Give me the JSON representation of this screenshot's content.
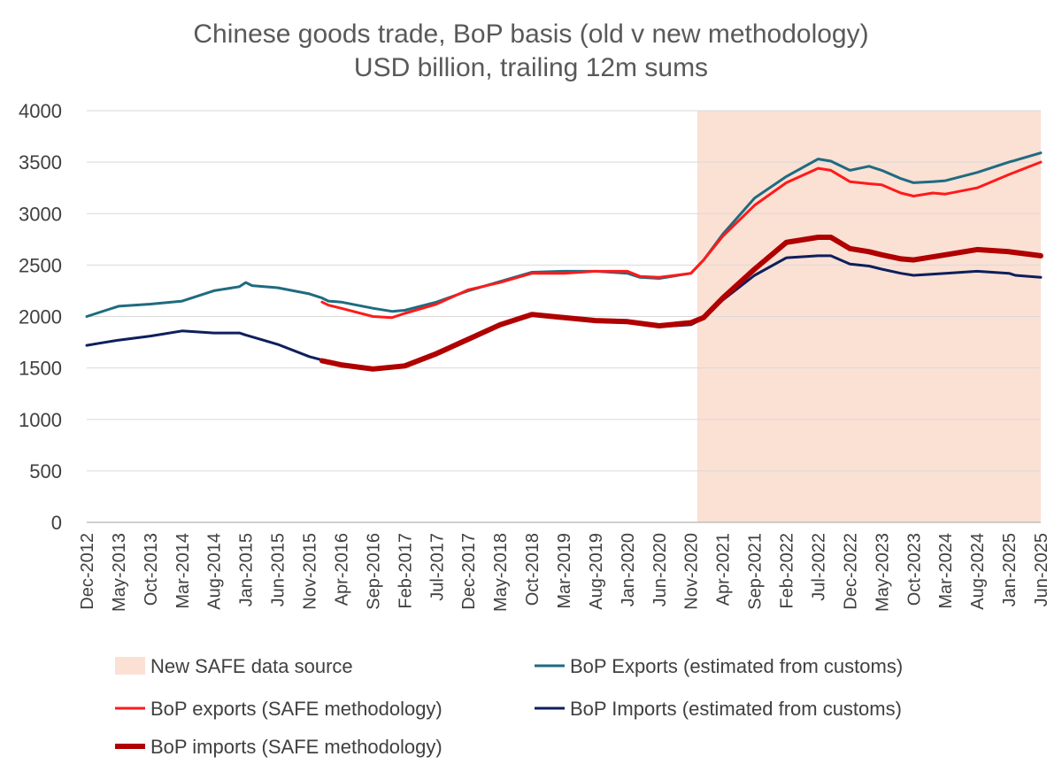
{
  "chart_data": {
    "type": "line",
    "title": "Chinese goods trade, BoP basis (old v new methodology)",
    "subtitle": "USD billion, trailing 12m sums",
    "ylim": [
      0,
      4000
    ],
    "y_ticks": [
      "0",
      "500",
      "1000",
      "1500",
      "2000",
      "2500",
      "3000",
      "3500",
      "4000"
    ],
    "x_ticks": [
      "Dec-2012",
      "May-2013",
      "Oct-2013",
      "Mar-2014",
      "Aug-2014",
      "Jan-2015",
      "Jun-2015",
      "Nov-2015",
      "Apr-2016",
      "Sep-2016",
      "Feb-2017",
      "Jul-2017",
      "Dec-2017",
      "May-2018",
      "Oct-2018",
      "Mar-2019",
      "Aug-2019",
      "Jan-2020",
      "Jun-2020",
      "Nov-2020",
      "Apr-2021",
      "Sep-2021",
      "Feb-2022",
      "Jul-2022",
      "Dec-2022",
      "May-2023",
      "Oct-2023",
      "Mar-2024",
      "Aug-2024",
      "Jan-2025",
      "Jun-2025"
    ],
    "shaded_region": {
      "label": "New SAFE data source",
      "start": "Dec-2020",
      "end": "Jun-2025",
      "color": "#fbe0d4"
    },
    "grid": true,
    "series": [
      {
        "name": "BoP Exports (estimated from customs)",
        "color": "#1f6b80",
        "width": 3,
        "points": [
          [
            "Dec-2012",
            2000
          ],
          [
            "Mar-2013",
            2060
          ],
          [
            "May-2013",
            2100
          ],
          [
            "Oct-2013",
            2120
          ],
          [
            "Mar-2014",
            2150
          ],
          [
            "Aug-2014",
            2250
          ],
          [
            "Dec-2014",
            2290
          ],
          [
            "Jan-2015",
            2330
          ],
          [
            "Feb-2015",
            2300
          ],
          [
            "Jun-2015",
            2280
          ],
          [
            "Nov-2015",
            2220
          ],
          [
            "Jan-2016",
            2180
          ],
          [
            "Feb-2016",
            2150
          ],
          [
            "Apr-2016",
            2140
          ],
          [
            "Sep-2016",
            2080
          ],
          [
            "Dec-2016",
            2050
          ],
          [
            "Feb-2017",
            2060
          ],
          [
            "Jul-2017",
            2140
          ],
          [
            "Dec-2017",
            2250
          ],
          [
            "May-2018",
            2340
          ],
          [
            "Oct-2018",
            2430
          ],
          [
            "Mar-2019",
            2440
          ],
          [
            "Aug-2019",
            2440
          ],
          [
            "Jan-2020",
            2420
          ],
          [
            "Mar-2020",
            2380
          ],
          [
            "Jun-2020",
            2370
          ],
          [
            "Nov-2020",
            2420
          ],
          [
            "Jan-2021",
            2550
          ],
          [
            "Apr-2021",
            2800
          ],
          [
            "Sep-2021",
            3150
          ],
          [
            "Feb-2022",
            3360
          ],
          [
            "Jul-2022",
            3530
          ],
          [
            "Sep-2022",
            3510
          ],
          [
            "Dec-2022",
            3420
          ],
          [
            "Mar-2023",
            3460
          ],
          [
            "May-2023",
            3420
          ],
          [
            "Aug-2023",
            3340
          ],
          [
            "Oct-2023",
            3300
          ],
          [
            "Jan-2024",
            3310
          ],
          [
            "Mar-2024",
            3320
          ],
          [
            "Aug-2024",
            3400
          ],
          [
            "Jan-2025",
            3500
          ],
          [
            "Jun-2025",
            3590
          ]
        ]
      },
      {
        "name": "BoP exports (SAFE methodology)",
        "color": "#ff1a1a",
        "width": 3,
        "points": [
          [
            "Jan-2016",
            2140
          ],
          [
            "Feb-2016",
            2110
          ],
          [
            "Apr-2016",
            2080
          ],
          [
            "Sep-2016",
            2000
          ],
          [
            "Dec-2016",
            1990
          ],
          [
            "Feb-2017",
            2030
          ],
          [
            "Jul-2017",
            2120
          ],
          [
            "Dec-2017",
            2260
          ],
          [
            "May-2018",
            2330
          ],
          [
            "Oct-2018",
            2420
          ],
          [
            "Mar-2019",
            2420
          ],
          [
            "Aug-2019",
            2440
          ],
          [
            "Jan-2020",
            2440
          ],
          [
            "Mar-2020",
            2390
          ],
          [
            "Jun-2020",
            2380
          ],
          [
            "Nov-2020",
            2420
          ],
          [
            "Jan-2021",
            2550
          ],
          [
            "Apr-2021",
            2780
          ],
          [
            "Sep-2021",
            3080
          ],
          [
            "Feb-2022",
            3300
          ],
          [
            "Jul-2022",
            3440
          ],
          [
            "Sep-2022",
            3420
          ],
          [
            "Dec-2022",
            3310
          ],
          [
            "Mar-2023",
            3290
          ],
          [
            "May-2023",
            3280
          ],
          [
            "Aug-2023",
            3200
          ],
          [
            "Oct-2023",
            3170
          ],
          [
            "Jan-2024",
            3200
          ],
          [
            "Mar-2024",
            3190
          ],
          [
            "Aug-2024",
            3250
          ],
          [
            "Jan-2025",
            3380
          ],
          [
            "Jun-2025",
            3500
          ]
        ]
      },
      {
        "name": "BoP Imports (estimated from customs)",
        "color": "#0d1f5c",
        "width": 3,
        "points": [
          [
            "Dec-2012",
            1720
          ],
          [
            "Feb-2013",
            1740
          ],
          [
            "May-2013",
            1770
          ],
          [
            "Oct-2013",
            1810
          ],
          [
            "Mar-2014",
            1860
          ],
          [
            "Aug-2014",
            1840
          ],
          [
            "Dec-2014",
            1840
          ],
          [
            "Jan-2015",
            1820
          ],
          [
            "Jun-2015",
            1730
          ],
          [
            "Nov-2015",
            1610
          ],
          [
            "Feb-2016",
            1560
          ],
          [
            "Apr-2016",
            1530
          ],
          [
            "Sep-2016",
            1490
          ],
          [
            "Feb-2017",
            1520
          ],
          [
            "Jul-2017",
            1640
          ],
          [
            "Dec-2017",
            1780
          ],
          [
            "May-2018",
            1920
          ],
          [
            "Oct-2018",
            2010
          ],
          [
            "Mar-2019",
            1980
          ],
          [
            "Aug-2019",
            1950
          ],
          [
            "Jan-2020",
            1940
          ],
          [
            "Jun-2020",
            1900
          ],
          [
            "Nov-2020",
            1920
          ],
          [
            "Jan-2021",
            1980
          ],
          [
            "Apr-2021",
            2160
          ],
          [
            "Sep-2021",
            2400
          ],
          [
            "Feb-2022",
            2570
          ],
          [
            "Jul-2022",
            2590
          ],
          [
            "Sep-2022",
            2590
          ],
          [
            "Dec-2022",
            2510
          ],
          [
            "Mar-2023",
            2490
          ],
          [
            "May-2023",
            2460
          ],
          [
            "Aug-2023",
            2420
          ],
          [
            "Oct-2023",
            2400
          ],
          [
            "Mar-2024",
            2420
          ],
          [
            "Aug-2024",
            2440
          ],
          [
            "Jan-2025",
            2420
          ],
          [
            "Feb-2025",
            2400
          ],
          [
            "Jun-2025",
            2380
          ]
        ]
      },
      {
        "name": "BoP imports (SAFE methodology)",
        "color": "#b00000",
        "width": 6,
        "points": [
          [
            "Jan-2016",
            1570
          ],
          [
            "Apr-2016",
            1530
          ],
          [
            "Sep-2016",
            1490
          ],
          [
            "Feb-2017",
            1520
          ],
          [
            "Jul-2017",
            1640
          ],
          [
            "Dec-2017",
            1780
          ],
          [
            "May-2018",
            1920
          ],
          [
            "Oct-2018",
            2020
          ],
          [
            "Mar-2019",
            1990
          ],
          [
            "Aug-2019",
            1960
          ],
          [
            "Jan-2020",
            1950
          ],
          [
            "Jun-2020",
            1910
          ],
          [
            "Nov-2020",
            1940
          ],
          [
            "Jan-2021",
            1990
          ],
          [
            "Apr-2021",
            2180
          ],
          [
            "Sep-2021",
            2460
          ],
          [
            "Feb-2022",
            2720
          ],
          [
            "Jul-2022",
            2770
          ],
          [
            "Sep-2022",
            2770
          ],
          [
            "Dec-2022",
            2660
          ],
          [
            "Mar-2023",
            2630
          ],
          [
            "May-2023",
            2600
          ],
          [
            "Aug-2023",
            2560
          ],
          [
            "Oct-2023",
            2550
          ],
          [
            "Mar-2024",
            2600
          ],
          [
            "Aug-2024",
            2650
          ],
          [
            "Jan-2025",
            2630
          ],
          [
            "Jun-2025",
            2590
          ]
        ]
      }
    ],
    "legend": [
      {
        "label": "New SAFE data source",
        "kind": "swatch",
        "color": "#fbe0d4"
      },
      {
        "label": "BoP Exports (estimated from customs)",
        "kind": "line",
        "color": "#1f6b80",
        "width": 3
      },
      {
        "label": "BoP exports (SAFE methodology)",
        "kind": "line",
        "color": "#ff1a1a",
        "width": 3
      },
      {
        "label": "BoP Imports (estimated from customs)",
        "kind": "line",
        "color": "#0d1f5c",
        "width": 3
      },
      {
        "label": "BoP imports (SAFE methodology)",
        "kind": "line",
        "color": "#b00000",
        "width": 6
      }
    ],
    "legend_position": "bottom"
  }
}
